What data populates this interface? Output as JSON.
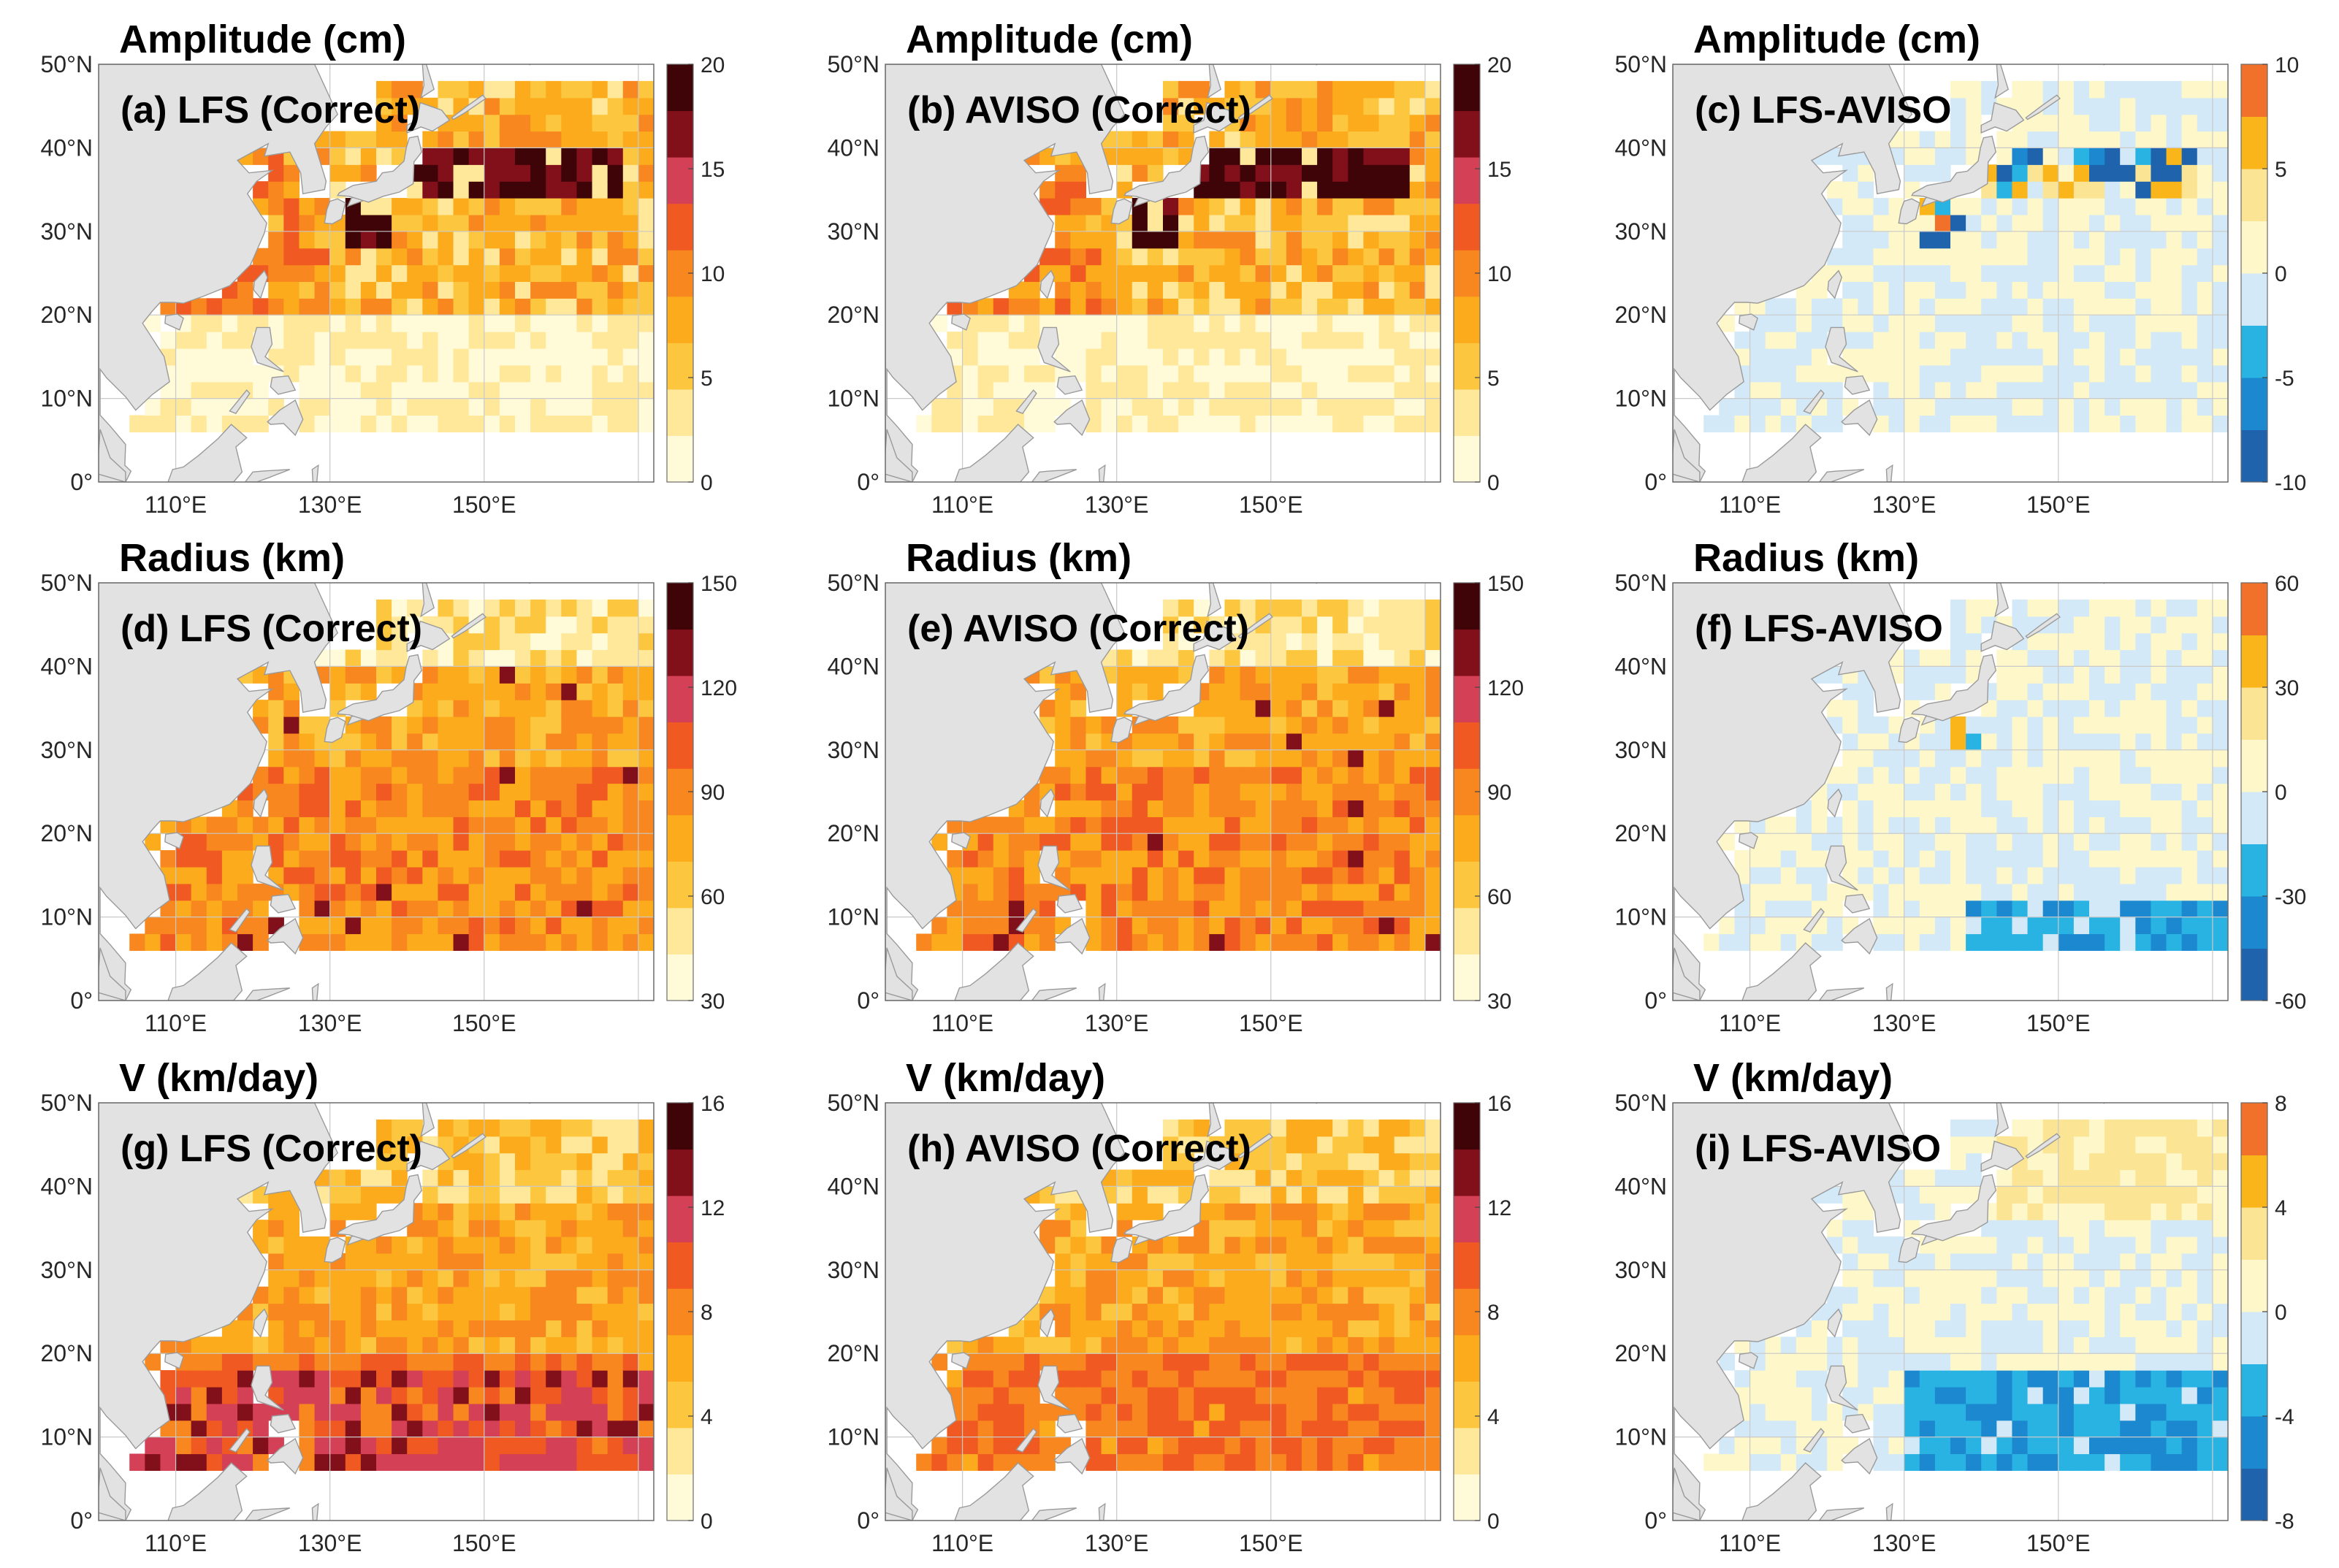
{
  "figure": {
    "colors": {
      "land": "#e2e2e2",
      "land_edge": "#9a9a9a",
      "seq": [
        "#fffbd9",
        "#ffe89a",
        "#fdc63f",
        "#fbab1c",
        "#f7871e",
        "#f05a22",
        "#d44055",
        "#82101b",
        "#3f0408"
      ],
      "div": [
        "#1f63ad",
        "#1c88cf",
        "#29b3e3",
        "#d3e9f7",
        "#fdf7c9",
        "#fbe493",
        "#f9b51a",
        "#f1702a"
      ]
    }
  },
  "chart_data": [
    {
      "type": "heatmap",
      "id": "a",
      "variable": "amplitude",
      "scale": "sequential",
      "title": "Amplitude (cm)",
      "label": "(a) LFS (Correct)",
      "xticks": [
        "110°E",
        "130°E",
        "150°E"
      ],
      "yticks": [
        "0°",
        "10°N",
        "20°N",
        "30°N",
        "40°N",
        "50°N"
      ],
      "xlim": [
        100,
        172
      ],
      "ylim": [
        0,
        50
      ],
      "grid": true,
      "colorbar": {
        "ticks": [
          "0",
          "5",
          "10",
          "15",
          "20"
        ],
        "range": [
          0,
          20
        ]
      },
      "cells": "gridded field, 2°x2° cells from 6°N to 48°N; values 0-20 cm"
    },
    {
      "type": "heatmap",
      "id": "b",
      "variable": "amplitude",
      "scale": "sequential",
      "title": "Amplitude (cm)",
      "label": "(b) AVISO (Correct)",
      "xticks": [
        "110°E",
        "130°E",
        "150°E"
      ],
      "yticks": [
        "0°",
        "10°N",
        "20°N",
        "30°N",
        "40°N",
        "50°N"
      ],
      "xlim": [
        100,
        172
      ],
      "ylim": [
        0,
        50
      ],
      "grid": true,
      "colorbar": {
        "ticks": [
          "0",
          "5",
          "10",
          "15",
          "20"
        ],
        "range": [
          0,
          20
        ]
      }
    },
    {
      "type": "heatmap",
      "id": "c",
      "variable": "amplitude",
      "scale": "diverging",
      "title": "Amplitude (cm)",
      "label": "(c) LFS-AVISO",
      "xticks": [
        "110°E",
        "130°E",
        "150°E"
      ],
      "yticks": [
        "0°",
        "10°N",
        "20°N",
        "30°N",
        "40°N",
        "50°N"
      ],
      "xlim": [
        100,
        172
      ],
      "ylim": [
        0,
        50
      ],
      "grid": true,
      "colorbar": {
        "ticks": [
          "-10",
          "-5",
          "0",
          "5",
          "10"
        ],
        "range": [
          -10,
          10
        ]
      }
    },
    {
      "type": "heatmap",
      "id": "d",
      "variable": "radius",
      "scale": "sequential",
      "title": "Radius (km)",
      "label": "(d) LFS (Correct)",
      "xticks": [
        "110°E",
        "130°E",
        "150°E"
      ],
      "yticks": [
        "0°",
        "10°N",
        "20°N",
        "30°N",
        "40°N",
        "50°N"
      ],
      "xlim": [
        100,
        172
      ],
      "ylim": [
        0,
        50
      ],
      "grid": true,
      "colorbar": {
        "ticks": [
          "30",
          "60",
          "90",
          "120",
          "150"
        ],
        "range": [
          30,
          150
        ]
      }
    },
    {
      "type": "heatmap",
      "id": "e",
      "variable": "radius",
      "scale": "sequential",
      "title": "Radius (km)",
      "label": "(e) AVISO (Correct)",
      "xticks": [
        "110°E",
        "130°E",
        "150°E"
      ],
      "yticks": [
        "0°",
        "10°N",
        "20°N",
        "30°N",
        "40°N",
        "50°N"
      ],
      "xlim": [
        100,
        172
      ],
      "ylim": [
        0,
        50
      ],
      "grid": true,
      "colorbar": {
        "ticks": [
          "30",
          "60",
          "90",
          "120",
          "150"
        ],
        "range": [
          30,
          150
        ]
      }
    },
    {
      "type": "heatmap",
      "id": "f",
      "variable": "radius",
      "scale": "diverging",
      "title": "Radius (km)",
      "label": "(f) LFS-AVISO",
      "xticks": [
        "110°E",
        "130°E",
        "150°E"
      ],
      "yticks": [
        "0°",
        "10°N",
        "20°N",
        "30°N",
        "40°N",
        "50°N"
      ],
      "xlim": [
        100,
        172
      ],
      "ylim": [
        0,
        50
      ],
      "grid": true,
      "colorbar": {
        "ticks": [
          "-60",
          "-30",
          "0",
          "30",
          "60"
        ],
        "range": [
          -60,
          60
        ]
      }
    },
    {
      "type": "heatmap",
      "id": "g",
      "variable": "speed",
      "scale": "sequential",
      "title": "V (km/day)",
      "label": "(g) LFS (Correct)",
      "xticks": [
        "110°E",
        "130°E",
        "150°E"
      ],
      "yticks": [
        "0°",
        "10°N",
        "20°N",
        "30°N",
        "40°N",
        "50°N"
      ],
      "xlim": [
        100,
        172
      ],
      "ylim": [
        0,
        50
      ],
      "grid": true,
      "colorbar": {
        "ticks": [
          "0",
          "4",
          "8",
          "12",
          "16"
        ],
        "range": [
          0,
          16
        ]
      }
    },
    {
      "type": "heatmap",
      "id": "h",
      "variable": "speed",
      "scale": "sequential",
      "title": "V (km/day)",
      "label": "(h) AVISO (Correct)",
      "xticks": [
        "110°E",
        "130°E",
        "150°E"
      ],
      "yticks": [
        "0°",
        "10°N",
        "20°N",
        "30°N",
        "40°N",
        "50°N"
      ],
      "xlim": [
        100,
        172
      ],
      "ylim": [
        0,
        50
      ],
      "grid": true,
      "colorbar": {
        "ticks": [
          "0",
          "4",
          "8",
          "12",
          "16"
        ],
        "range": [
          0,
          16
        ]
      }
    },
    {
      "type": "heatmap",
      "id": "i",
      "variable": "speed",
      "scale": "diverging",
      "title": "V (km/day)",
      "label": "(i) LFS-AVISO",
      "xticks": [
        "110°E",
        "130°E",
        "150°E"
      ],
      "yticks": [
        "0°",
        "10°N",
        "20°N",
        "30°N",
        "40°N",
        "50°N"
      ],
      "xlim": [
        100,
        172
      ],
      "ylim": [
        0,
        50
      ],
      "grid": true,
      "colorbar": {
        "ticks": [
          "-8",
          "-4",
          "0",
          "4",
          "8"
        ],
        "range": [
          -8,
          8
        ]
      }
    }
  ]
}
